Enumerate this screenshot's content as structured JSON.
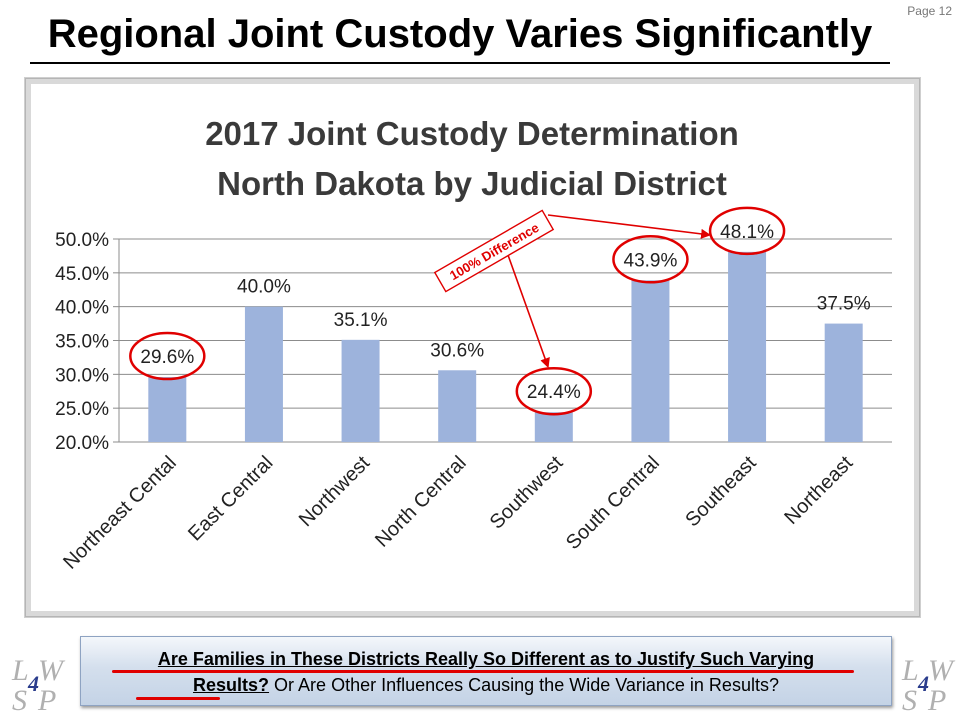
{
  "slide": {
    "title": "Regional Joint Custody Varies Significantly",
    "page_label": "Page 12"
  },
  "chart_data": {
    "type": "bar",
    "title_line1": "2017 Joint Custody Determination",
    "title_line2": "North Dakota by Judicial District",
    "categories": [
      "Northeast Cental",
      "East Central",
      "Northwest",
      "North Central",
      "Southwest",
      "South Central",
      "Southeast",
      "Northeast"
    ],
    "values": [
      29.6,
      40.0,
      35.1,
      30.6,
      24.4,
      43.9,
      48.1,
      37.5
    ],
    "value_labels": [
      "29.6%",
      "40.0%",
      "35.1%",
      "30.6%",
      "24.4%",
      "43.9%",
      "48.1%",
      "37.5%"
    ],
    "ylim": [
      20,
      50
    ],
    "yticks": [
      20,
      25,
      30,
      35,
      40,
      45,
      50
    ],
    "ytick_labels": [
      "20.0%",
      "25.0%",
      "30.0%",
      "35.0%",
      "40.0%",
      "45.0%",
      "50.0%"
    ],
    "bar_color": "#9db3dc",
    "grid": true,
    "circled_categories": [
      "Northeast Cental",
      "Southwest",
      "South Central",
      "Southeast"
    ],
    "annotation": {
      "text": "100% Difference",
      "from": "Southwest",
      "to": "Southeast",
      "color": "#e00000"
    }
  },
  "callout": {
    "line1": "Are Families in These Districts Really So Different as to Justify Such Varying",
    "line2_bold": "Results?",
    "line2_rest": " Or Are Other Influences Causing the Wide Variance in Results?"
  },
  "logo": {
    "letters": [
      "L",
      "W",
      "S",
      "P"
    ],
    "number": "4"
  },
  "colors": {
    "accent_red": "#e00000",
    "bar": "#9db3dc",
    "logo_number": "#2a3c8c"
  }
}
